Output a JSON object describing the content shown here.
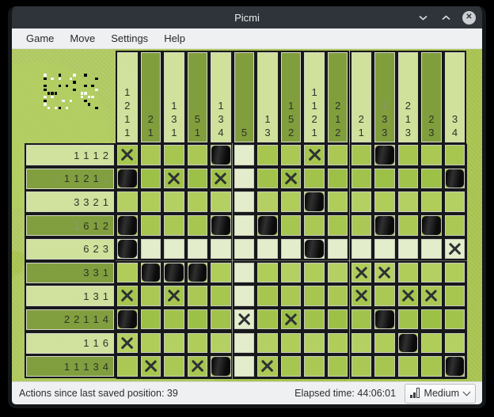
{
  "window": {
    "title": "Picmi",
    "buttons": {
      "minimize": "minimize",
      "maximize": "maximize",
      "close": "close"
    }
  },
  "menu": {
    "items": [
      "Game",
      "Move",
      "Settings",
      "Help"
    ]
  },
  "board": {
    "cols": 15,
    "rows": 10,
    "col_hints": [
      [
        {
          "n": 1
        },
        {
          "n": 2
        },
        {
          "n": 1
        },
        {
          "n": 1
        }
      ],
      [
        {
          "n": 2
        },
        {
          "n": 1
        }
      ],
      [
        {
          "n": 1
        },
        {
          "n": 3
        },
        {
          "n": 1
        }
      ],
      [
        {
          "n": 5
        },
        {
          "n": 1
        }
      ],
      [
        {
          "n": 1
        },
        {
          "n": 3
        },
        {
          "n": 4
        }
      ],
      [
        {
          "n": 5
        }
      ],
      [
        {
          "n": 1
        },
        {
          "n": 3
        }
      ],
      [
        {
          "n": 1
        },
        {
          "n": 5
        },
        {
          "n": 2
        }
      ],
      [
        {
          "n": 1
        },
        {
          "n": 1
        },
        {
          "n": 2
        },
        {
          "n": 1
        }
      ],
      [
        {
          "n": 2
        },
        {
          "n": 1
        },
        {
          "n": 2
        }
      ],
      [
        {
          "n": 2
        },
        {
          "n": 1
        }
      ],
      [
        {
          "n": 1,
          "done": true
        },
        {
          "n": 3
        },
        {
          "n": 3
        }
      ],
      [
        {
          "n": 2
        },
        {
          "n": 1
        },
        {
          "n": 3
        }
      ],
      [
        {
          "n": 2
        },
        {
          "n": 3
        }
      ],
      [
        {
          "n": 3
        },
        {
          "n": 4
        }
      ]
    ],
    "row_hints": [
      [
        {
          "n": 1
        },
        {
          "n": 1
        },
        {
          "n": 1
        },
        {
          "n": 2
        }
      ],
      [
        {
          "n": 1,
          "done": true
        },
        {
          "n": 1
        },
        {
          "n": 1
        },
        {
          "n": 2
        },
        {
          "n": 1
        },
        {
          "n": 1,
          "done": true
        }
      ],
      [
        {
          "n": 3
        },
        {
          "n": 3
        },
        {
          "n": 2
        },
        {
          "n": 1
        }
      ],
      [
        {
          "n": 1,
          "done": true
        },
        {
          "n": 6
        },
        {
          "n": 1
        },
        {
          "n": 2
        }
      ],
      [
        {
          "n": 6
        },
        {
          "n": 2
        },
        {
          "n": 3
        }
      ],
      [
        {
          "n": 3
        },
        {
          "n": 3
        },
        {
          "n": 1
        }
      ],
      [
        {
          "n": 1
        },
        {
          "n": 3
        },
        {
          "n": 1
        }
      ],
      [
        {
          "n": 2
        },
        {
          "n": 2
        },
        {
          "n": 1
        },
        {
          "n": 1
        },
        {
          "n": 4
        }
      ],
      [
        {
          "n": 1
        },
        {
          "n": 1
        },
        {
          "n": 6
        }
      ],
      [
        {
          "n": 1
        },
        {
          "n": 1
        },
        {
          "n": 1
        },
        {
          "n": 3
        },
        {
          "n": 4
        }
      ]
    ],
    "grid": [
      "x...f...x..f...",
      "f.x.x..x......f",
      "........f......",
      "f...f.f....f.f.",
      "f.......f.....x",
      ".fff......xx...",
      "x.x.......x.xx.",
      "f....x.x...f...",
      "x...........f..",
      ".x.xf.x.......f"
    ]
  },
  "statusbar": {
    "left_text": "Actions since last saved position: 39",
    "elapsed_text": "Elapsed time: 44:06:01",
    "difficulty_label": "Medium",
    "difficulty_icon": "bar-chart-icon"
  },
  "colors": {
    "titlebar": "#2f343a",
    "menubar": "#eff0f1",
    "board_green": "#a9c551",
    "hint_light": "#d2e3a0",
    "hint_dark": "#7e9c3c",
    "cell_light": "#e4edcb",
    "filled": "#151515",
    "cross": "#2e3134",
    "hint_done_text": "#8a9a6e"
  }
}
